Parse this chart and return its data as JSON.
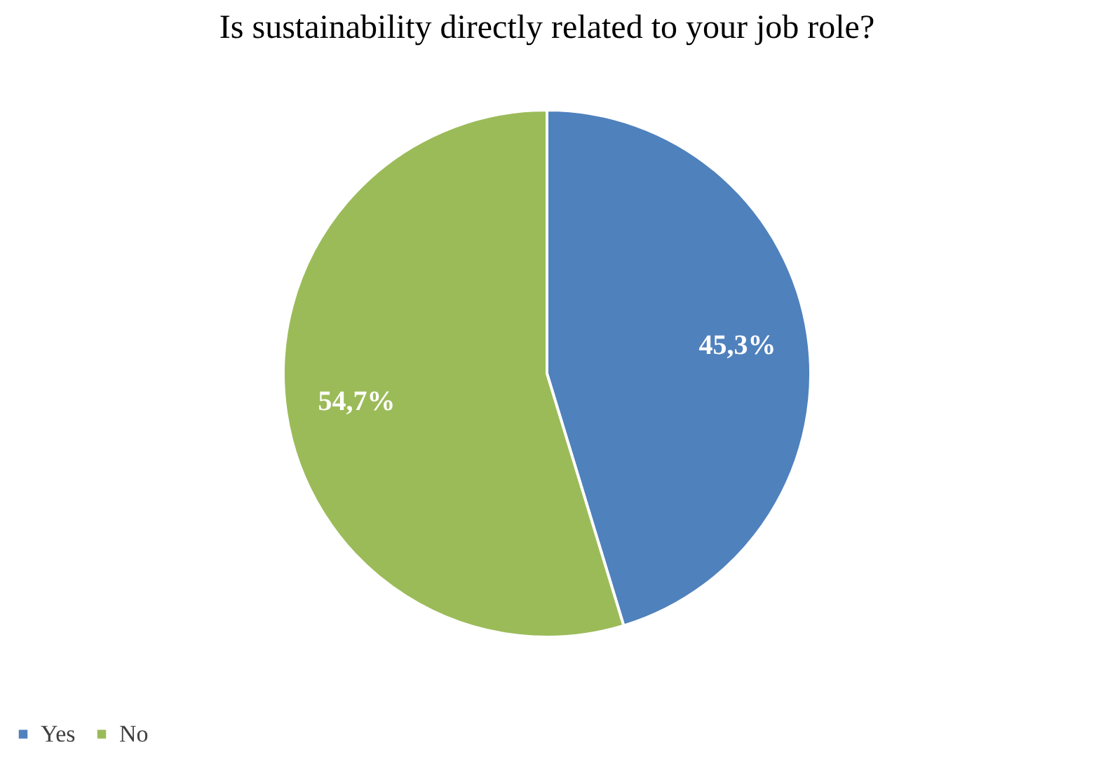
{
  "chart_data": {
    "type": "pie",
    "title": "Is sustainability directly related to your job role?",
    "categories": [
      "Yes",
      "No"
    ],
    "values": [
      45.3,
      54.7
    ],
    "colors": [
      "#4f81bd",
      "#9bbb59"
    ],
    "value_labels": [
      "45,3%",
      "54,7%"
    ],
    "legend": "bottom"
  }
}
